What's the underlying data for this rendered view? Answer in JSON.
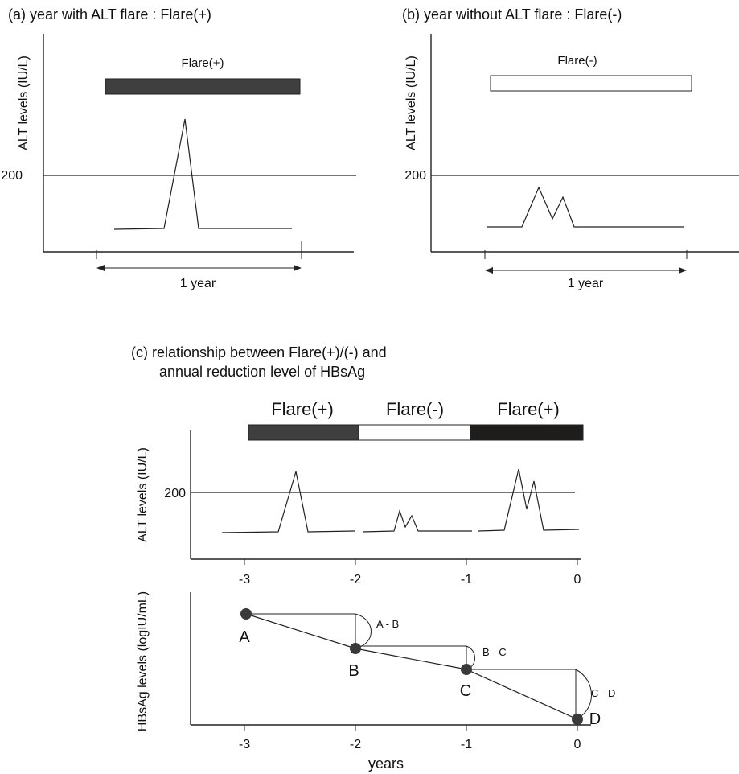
{
  "panel_a": {
    "title": "(a) year with ALT flare :  Flare(+)",
    "ylabel": "ALT levels (IU/L)",
    "threshold_label": "200",
    "bar_label": "Flare(+)",
    "span_label": "1 year"
  },
  "panel_b": {
    "title": "(b) year without ALT flare : Flare(-)",
    "ylabel": "ALT levels (IU/L)",
    "threshold_label": "200",
    "bar_label": "Flare(-)",
    "span_label": "1 year"
  },
  "panel_c": {
    "title_line1": "(c) relationship between Flare(+)/(-) and",
    "title_line2": "annual reduction level of HBsAg",
    "bars": [
      {
        "label": "Flare(+)",
        "fill": "#3f3f3f"
      },
      {
        "label": "Flare(-)",
        "fill": "#ffffff"
      },
      {
        "label": "Flare(+)",
        "fill": "#1f1c1c"
      }
    ],
    "alt_ylabel": "ALT levels (IU/L)",
    "threshold_label": "200",
    "ticks": [
      "-3",
      "-2",
      "-1",
      "0"
    ],
    "hbs_ylabel": "HBsAg levels (logIU/mL)",
    "points": [
      "A",
      "B",
      "C",
      "D"
    ],
    "diffs": [
      "A - B",
      "B - C",
      "C - D"
    ],
    "xlabel": "years"
  },
  "colors": {
    "flare_pos": "#3f3f3f",
    "flare_pos_dark": "#1f1c1c",
    "point_fill": "#3a3a3a"
  }
}
